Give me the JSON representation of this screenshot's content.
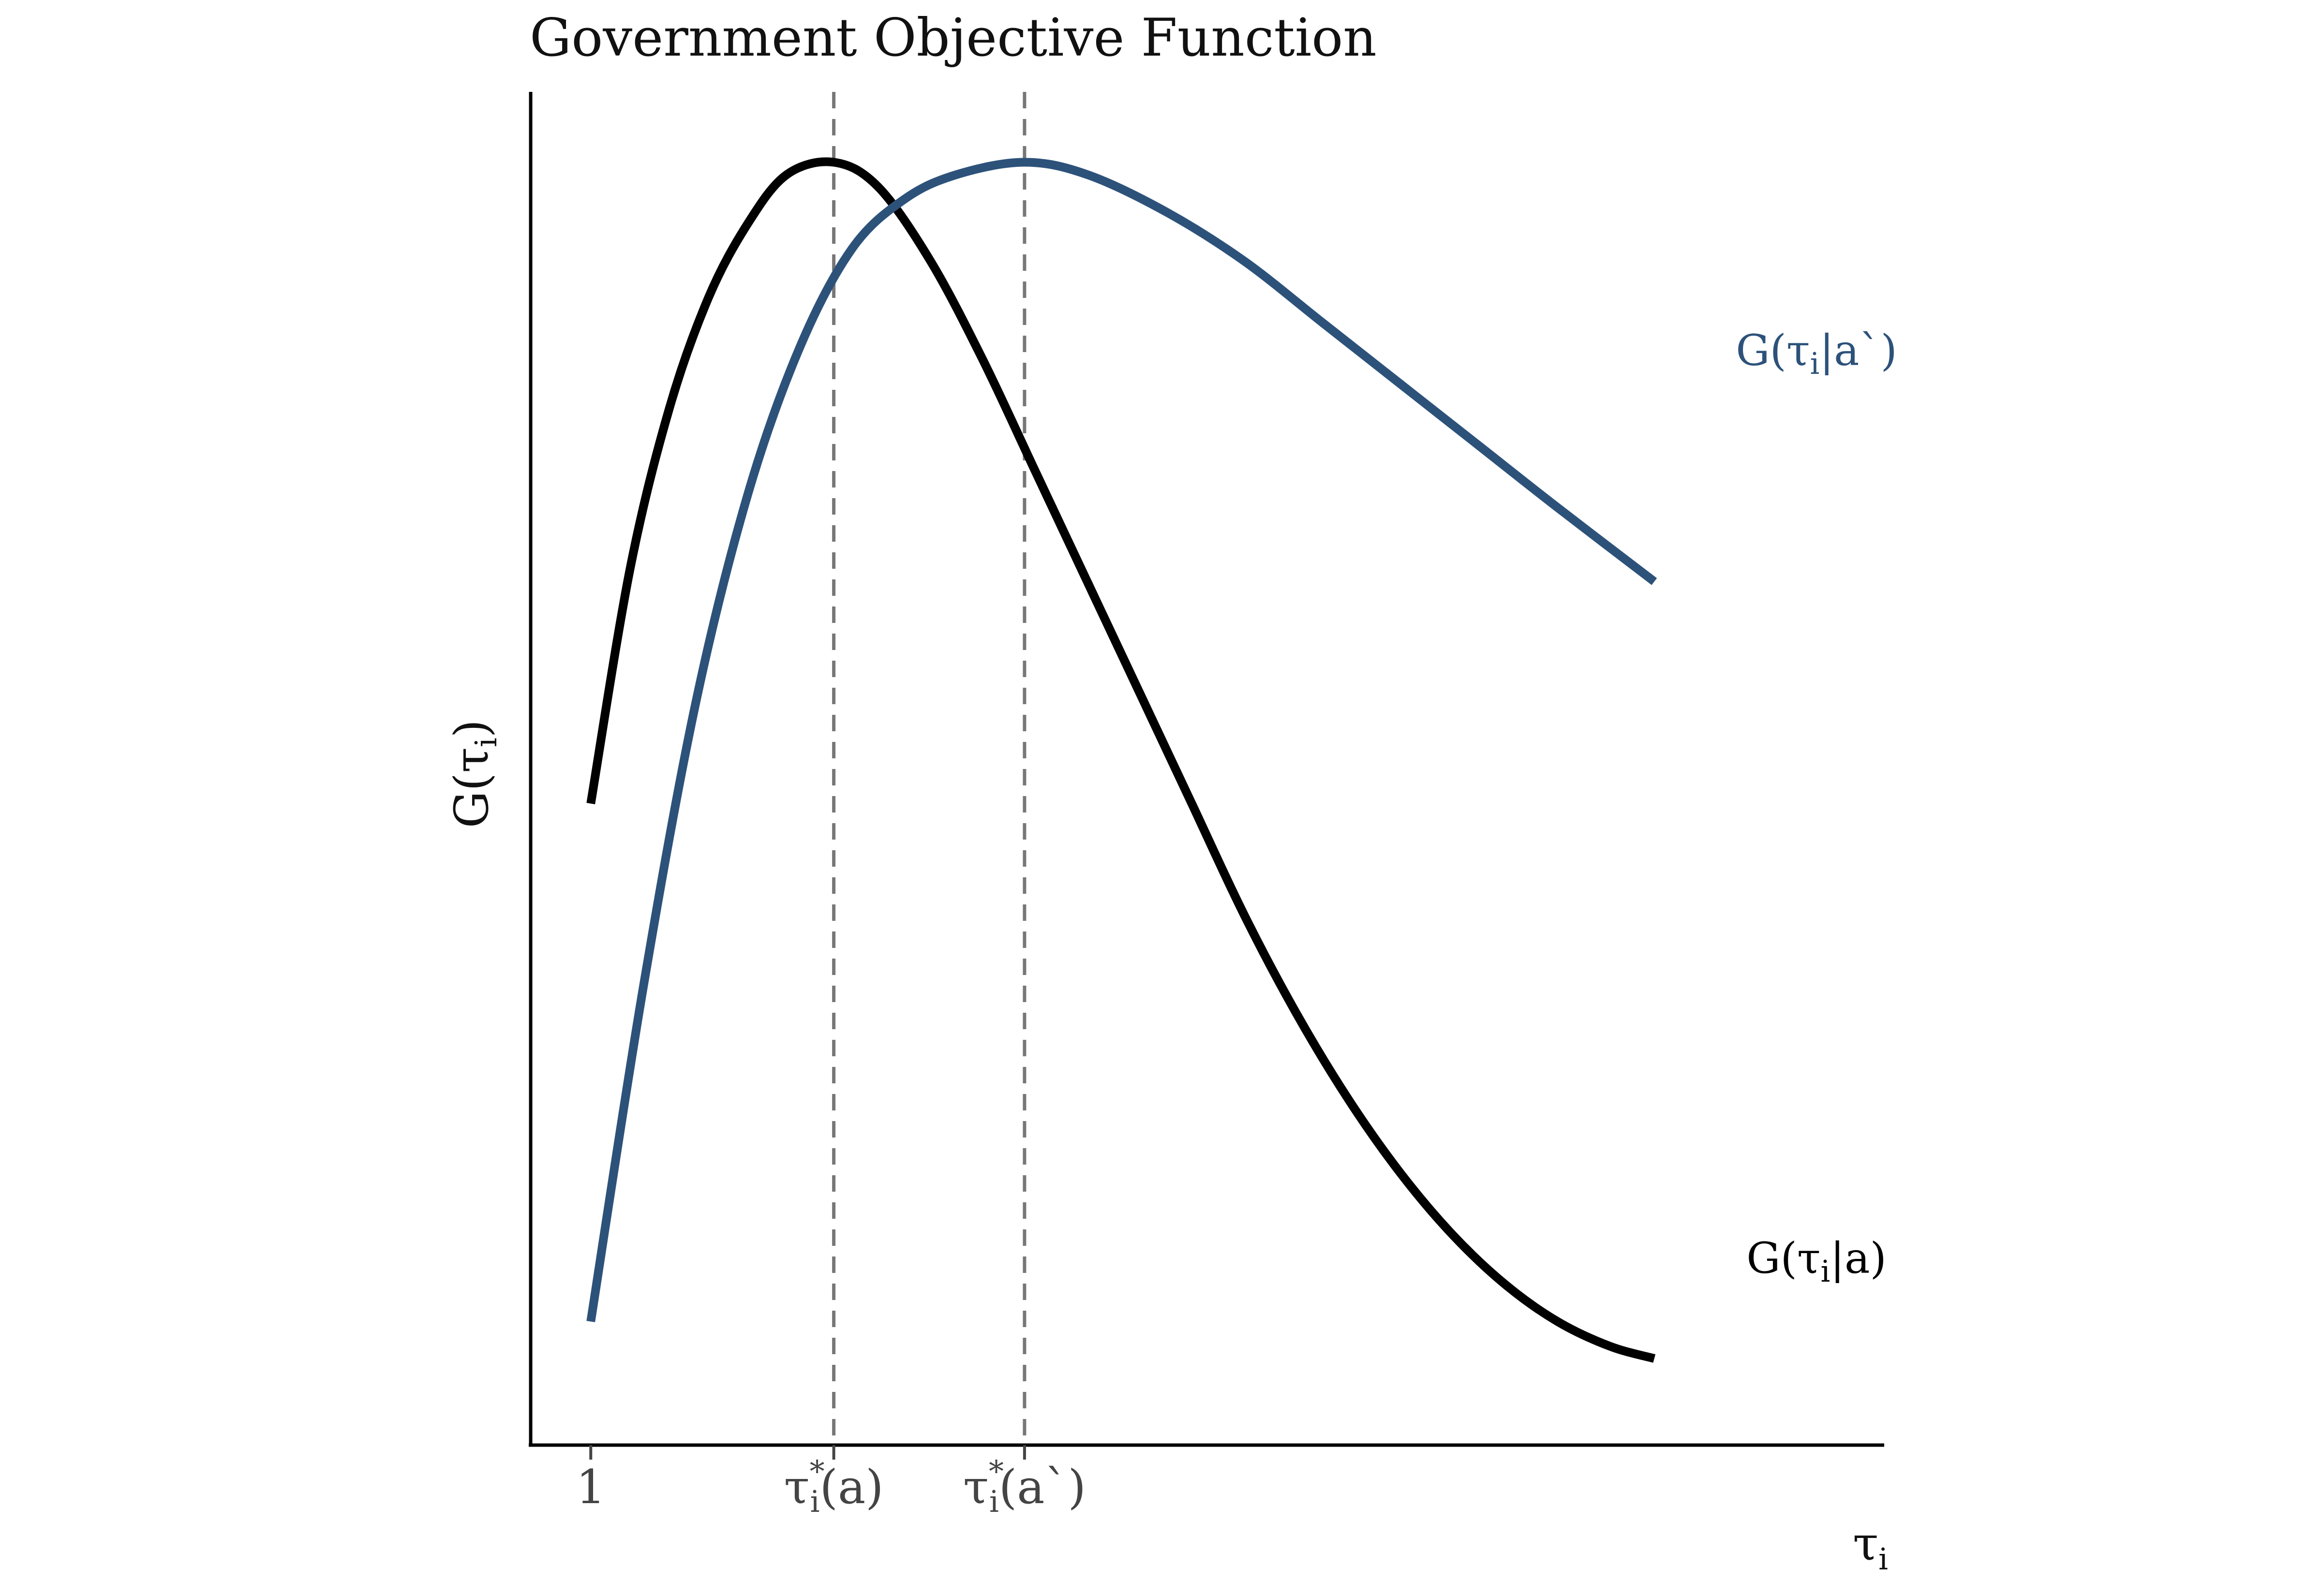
{
  "chart_data": {
    "type": "line",
    "title": "Government Objective Function",
    "xlabel": "τ",
    "xlabel_sub": "i",
    "ylabel": "G(τ",
    "ylabel_sub": "i",
    "ylabel_close": ")",
    "xlim": [
      0.77,
      5.95
    ],
    "ylim": [
      0,
      1
    ],
    "grid": false,
    "x_ticks": [
      {
        "value": 1,
        "main": "1",
        "sub": "",
        "sup": "",
        "rest": ""
      },
      {
        "value": 1.93,
        "main": "τ",
        "sub": "i",
        "sup": "*",
        "rest": "(a)"
      },
      {
        "value": 2.66,
        "main": "τ",
        "sub": "i",
        "sup": "*",
        "rest": "(a`)"
      }
    ],
    "reference_lines": [
      {
        "x": 1.93,
        "style": "dashed",
        "color": "#777777"
      },
      {
        "x": 2.66,
        "style": "dashed",
        "color": "#777777"
      }
    ],
    "series": [
      {
        "name": "G(τi|a)",
        "label_parts": {
          "pre": "G(τ",
          "sub": "i",
          "post": "|a)"
        },
        "color": "#000000",
        "x": [
          1.0,
          1.15,
          1.3,
          1.45,
          1.6,
          1.75,
          1.93,
          2.1,
          2.3,
          2.5,
          2.7,
          2.9,
          3.1,
          3.3,
          3.5,
          3.7,
          3.9,
          4.1,
          4.3,
          4.5,
          4.7,
          4.9,
          5.07
        ],
        "y": [
          0.47,
          0.66,
          0.79,
          0.88,
          0.94,
          0.98,
          0.99,
          0.97,
          0.91,
          0.83,
          0.74,
          0.65,
          0.56,
          0.47,
          0.38,
          0.3,
          0.23,
          0.17,
          0.12,
          0.08,
          0.05,
          0.03,
          0.02
        ]
      },
      {
        "name": "G(τi|a`)",
        "label_parts": {
          "pre": "G(τ",
          "sub": "i",
          "post": "|a`)"
        },
        "color": "#2d527a",
        "x": [
          1.0,
          1.2,
          1.4,
          1.6,
          1.8,
          2.0,
          2.2,
          2.4,
          2.66,
          2.9,
          3.2,
          3.5,
          3.8,
          4.1,
          4.4,
          4.7,
          5.07
        ],
        "y": [
          0.05,
          0.32,
          0.55,
          0.72,
          0.84,
          0.92,
          0.96,
          0.98,
          0.99,
          0.98,
          0.95,
          0.91,
          0.86,
          0.81,
          0.76,
          0.71,
          0.65
        ]
      }
    ]
  }
}
